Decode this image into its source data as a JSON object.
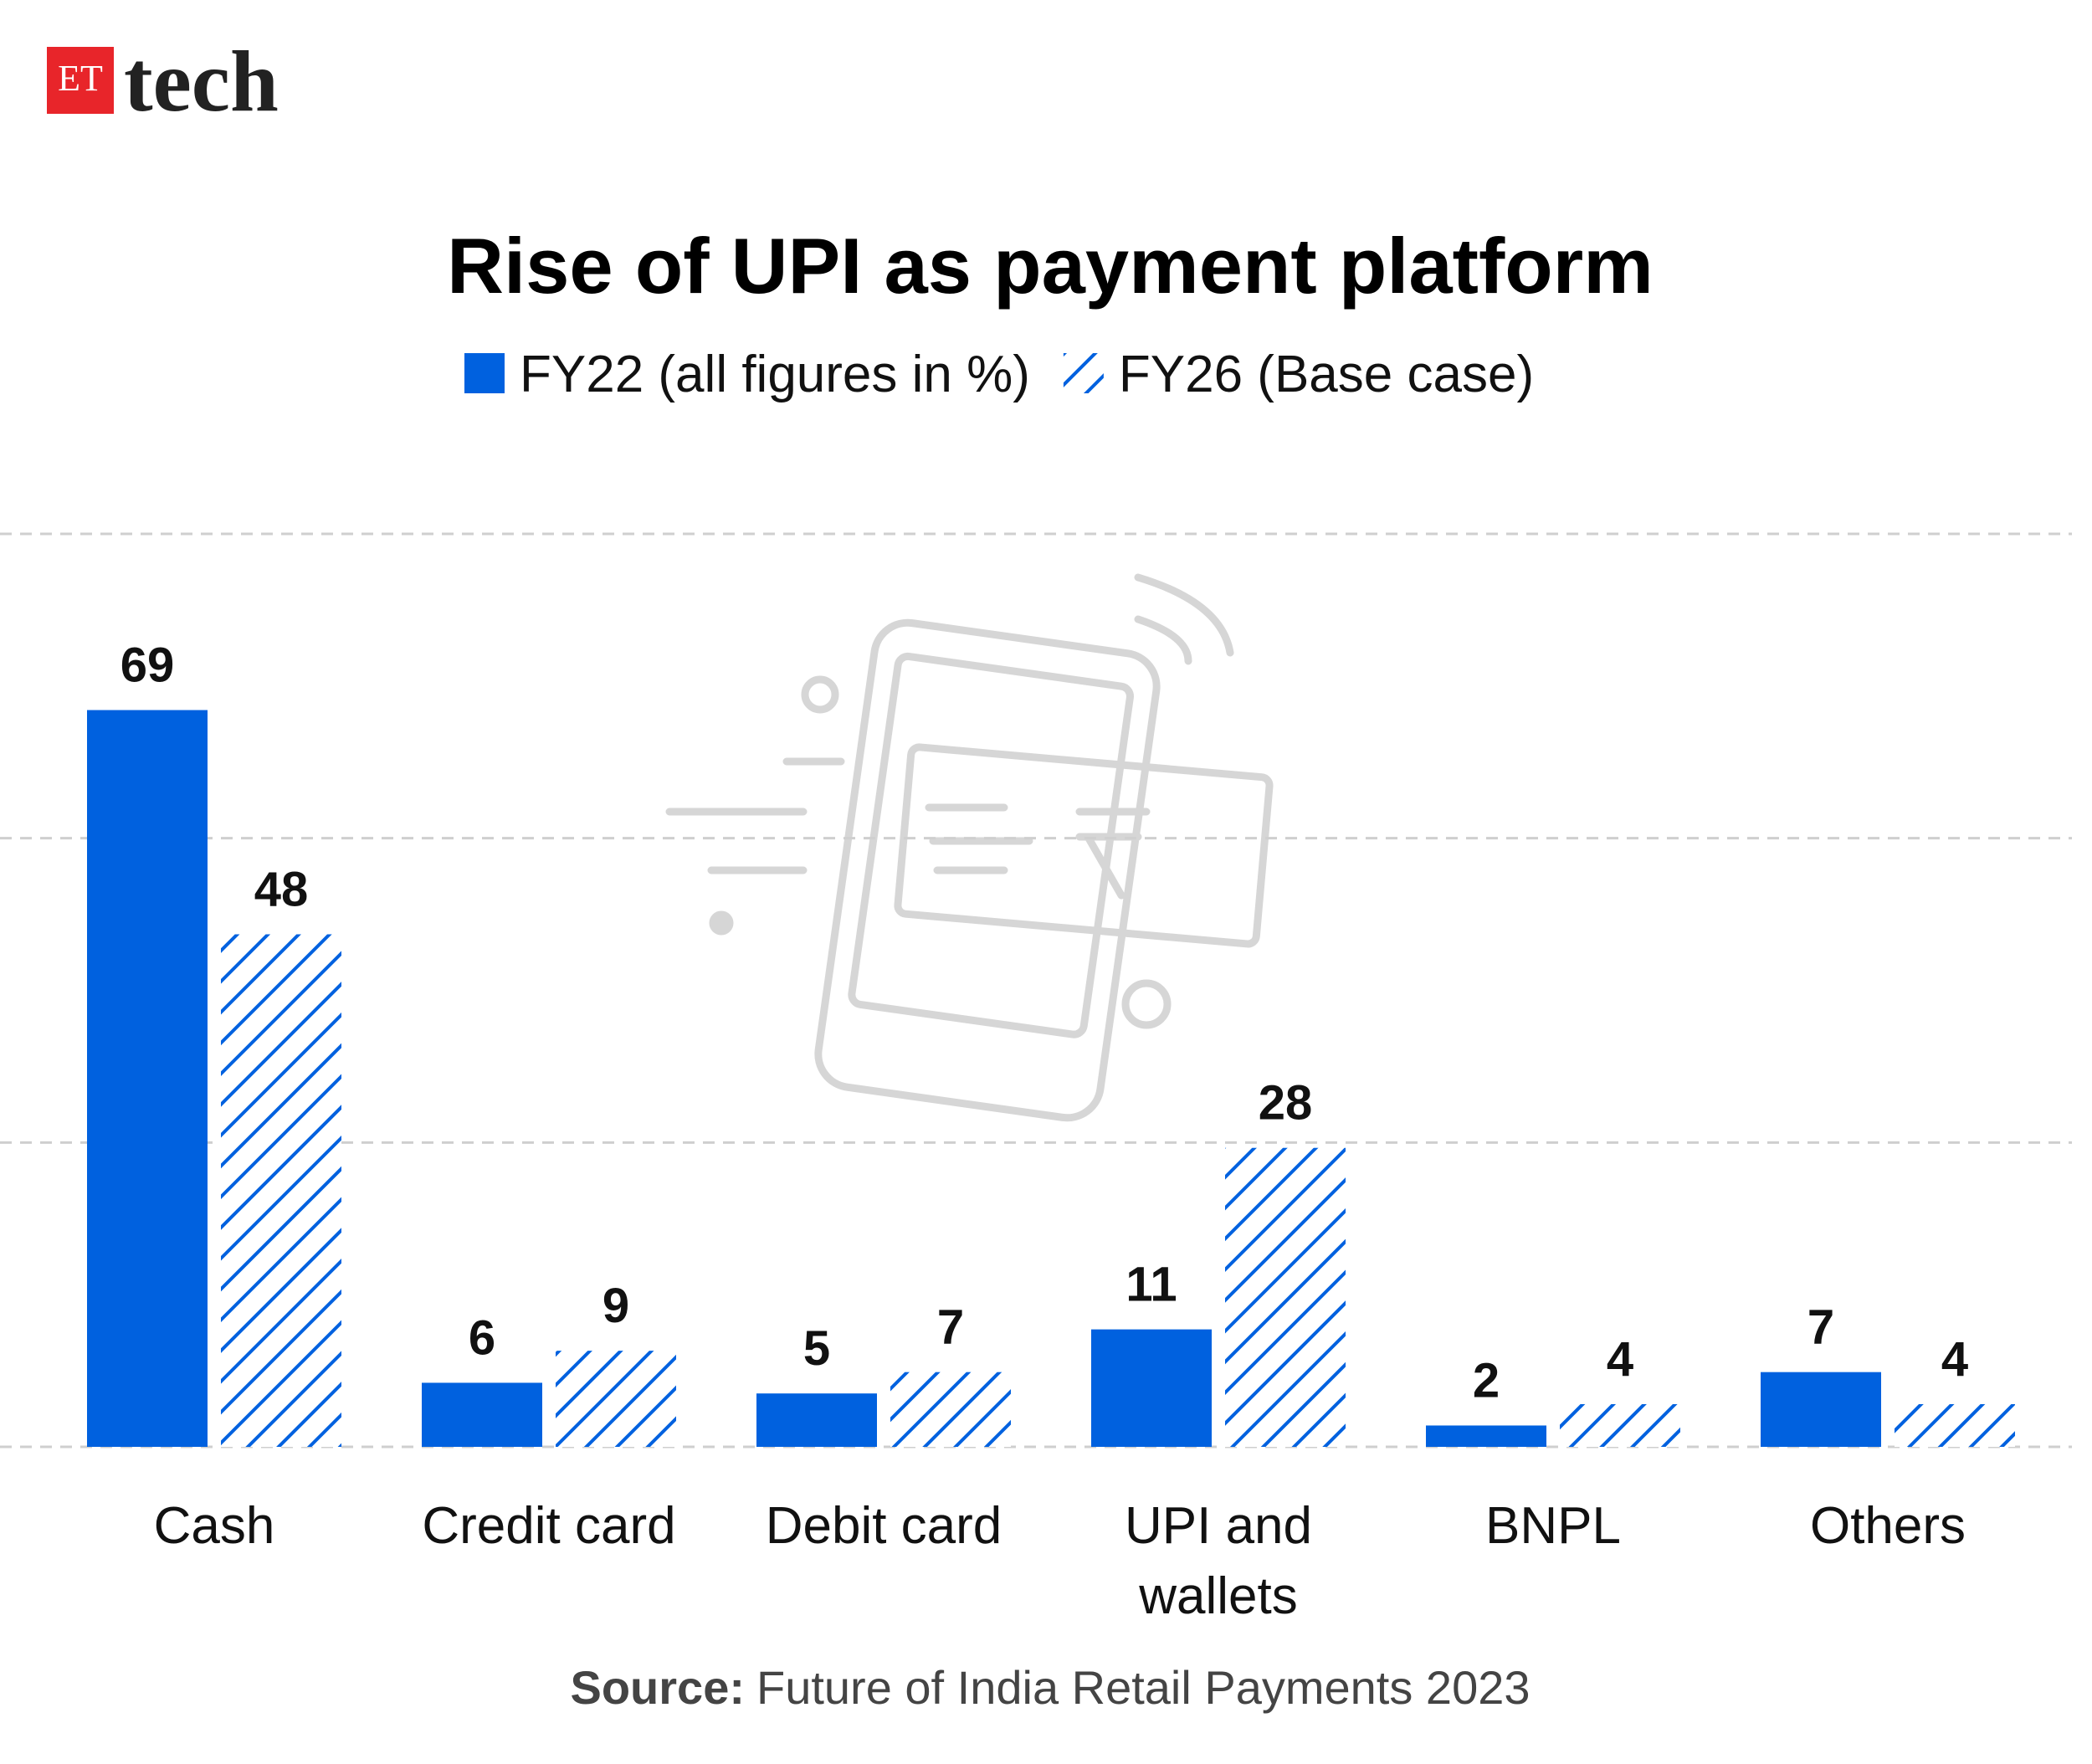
{
  "logo": {
    "badge": "ET",
    "text": "tech"
  },
  "chart_data": {
    "type": "bar",
    "title": "Rise of UPI as payment platform",
    "categories": [
      "Cash",
      "Credit card",
      "Debit card",
      "UPI and wallets",
      "BNPL",
      "Others"
    ],
    "series": [
      {
        "name": "FY22 (all figures in %)",
        "color": "#0061df",
        "pattern": "solid",
        "values": [
          69,
          6,
          5,
          11,
          2,
          7
        ]
      },
      {
        "name": "FY26 (Base case)",
        "color": "#0061df",
        "pattern": "hatch",
        "values": [
          48,
          9,
          7,
          28,
          4,
          4
        ]
      }
    ],
    "ylim": [
      0,
      85.5
    ],
    "yticks": [
      0,
      28.5,
      57,
      85.5
    ],
    "grid": true,
    "legend": "top",
    "source": {
      "label": "Source:",
      "text": "Future of India Retail Payments 2023"
    }
  }
}
